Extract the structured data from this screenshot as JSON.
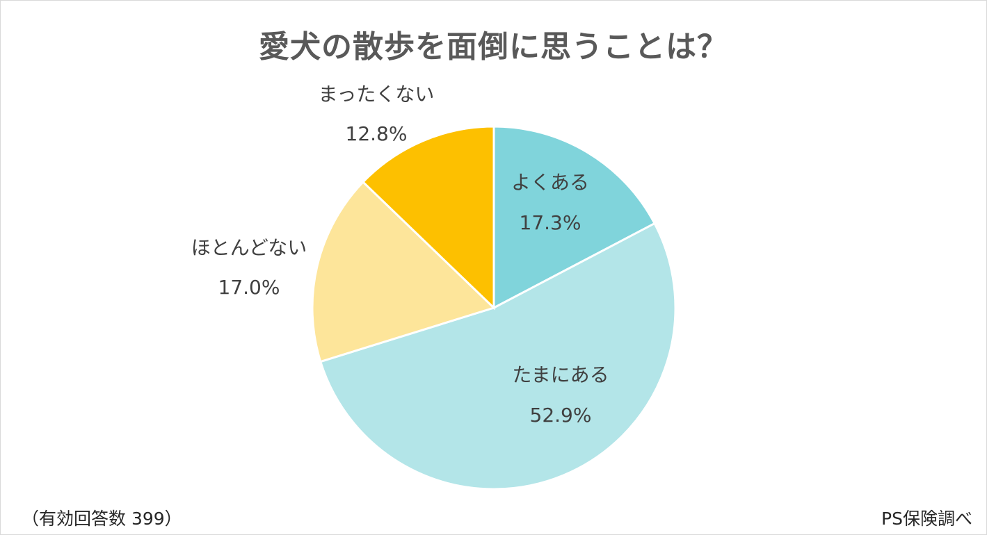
{
  "chart_data": {
    "type": "pie",
    "title": "愛犬の散歩を面倒に思うことは？",
    "slices": [
      {
        "label": "よくある",
        "value": 17.3,
        "value_label": "17.3%",
        "color": "#80D4DB"
      },
      {
        "label": "たまにある",
        "value": 52.9,
        "value_label": "52.9%",
        "color": "#B3E5E8"
      },
      {
        "label": "ほとんどない",
        "value": 17.0,
        "value_label": "17.0%",
        "color": "#FDE59A"
      },
      {
        "label": "まったくない",
        "value": 12.8,
        "value_label": "12.8%",
        "color": "#FDC000"
      }
    ]
  },
  "footer": {
    "note": "（有効回答数 399）",
    "source": "PS保険調べ"
  }
}
